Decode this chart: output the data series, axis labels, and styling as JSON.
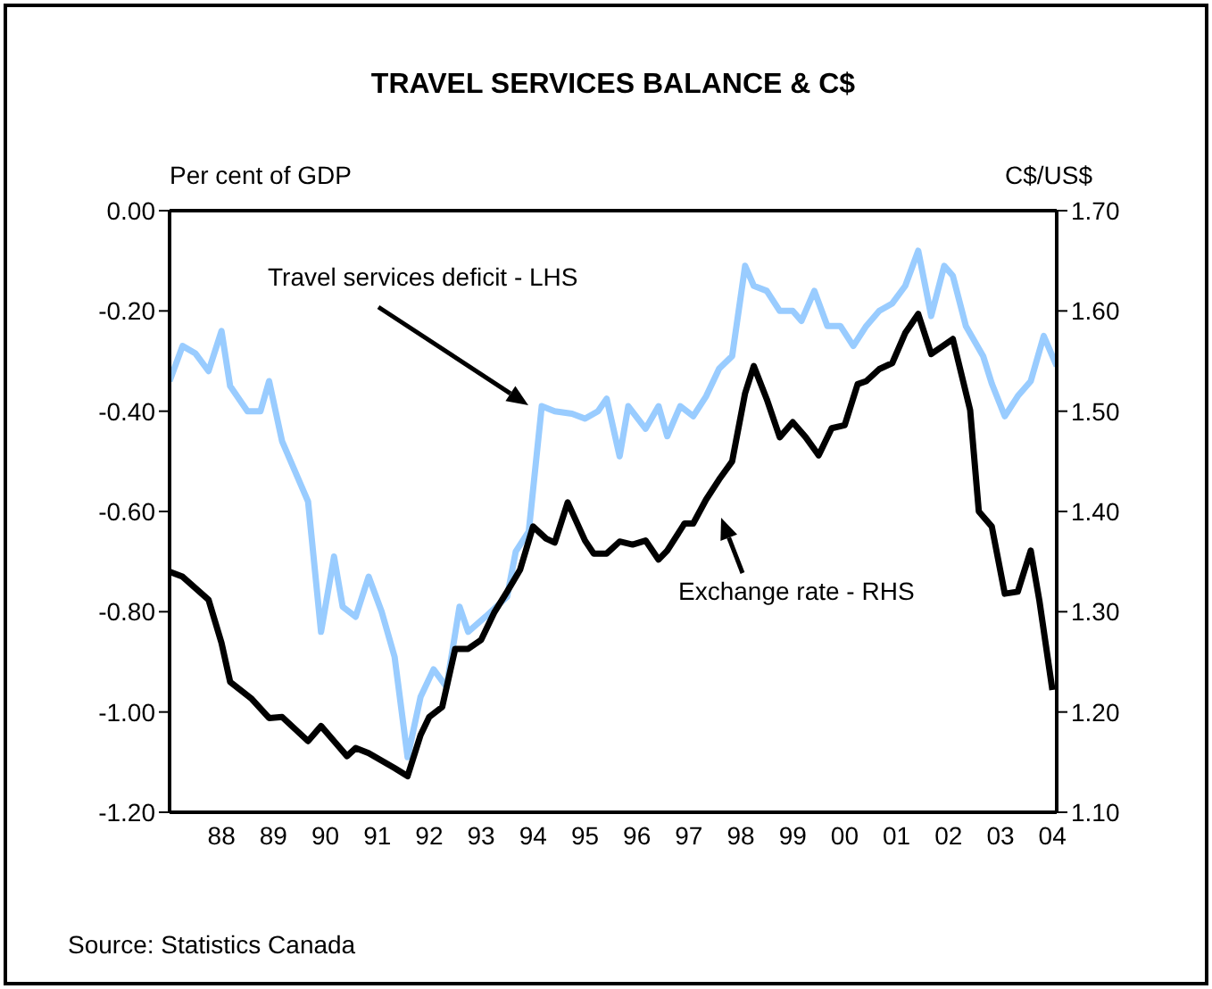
{
  "chart_data": {
    "type": "line",
    "title": "TRAVEL SERVICES BALANCE & C$",
    "ylabel": "Per cent of GDP",
    "y2label": "C$/US$",
    "annotations": [
      "Source: Statistics Canada"
    ],
    "xlim": [
      "1987-07",
      "2004-08"
    ],
    "xticks": [
      {
        "value": "1988-07",
        "label": "88"
      },
      {
        "value": "1989-07",
        "label": "89"
      },
      {
        "value": "1990-07",
        "label": "90"
      },
      {
        "value": "1991-07",
        "label": "91"
      },
      {
        "value": "1992-07",
        "label": "92"
      },
      {
        "value": "1993-07",
        "label": "93"
      },
      {
        "value": "1994-07",
        "label": "94"
      },
      {
        "value": "1995-07",
        "label": "95"
      },
      {
        "value": "1996-07",
        "label": "96"
      },
      {
        "value": "1997-07",
        "label": "97"
      },
      {
        "value": "1998-07",
        "label": "98"
      },
      {
        "value": "1999-07",
        "label": "99"
      },
      {
        "value": "2000-07",
        "label": "00"
      },
      {
        "value": "2001-07",
        "label": "01"
      },
      {
        "value": "2002-07",
        "label": "02"
      },
      {
        "value": "2003-07",
        "label": "03"
      },
      {
        "value": "2004-07",
        "label": "04"
      }
    ],
    "ylim": [
      -1.2,
      0
    ],
    "yticks": [
      {
        "value": 0,
        "label": "0.00"
      },
      {
        "value": -0.2,
        "label": "-0.20"
      },
      {
        "value": -0.4,
        "label": "-0.40"
      },
      {
        "value": -0.6,
        "label": "-0.60"
      },
      {
        "value": -0.8,
        "label": "-0.80"
      },
      {
        "value": -1.0,
        "label": "-1.00"
      },
      {
        "value": -1.2,
        "label": "-1.20"
      }
    ],
    "y2lim": [
      1.1,
      1.7
    ],
    "y2ticks": [
      {
        "value": 1.1,
        "label": "1.10"
      },
      {
        "value": 1.2,
        "label": "1.20"
      },
      {
        "value": 1.3,
        "label": "1.30"
      },
      {
        "value": 1.4,
        "label": "1.40"
      },
      {
        "value": 1.5,
        "label": "1.50"
      },
      {
        "value": 1.6,
        "label": "1.60"
      },
      {
        "value": 1.7,
        "label": "1.70"
      }
    ],
    "grid": false,
    "marker": "none",
    "line_style": "solid",
    "series": [
      {
        "name": "Travel services deficit - LHS",
        "color": "#99ccff",
        "x": [
          "1987-07",
          "1987-10",
          "1988-01",
          "1988-04",
          "1988-07",
          "1988-09",
          "1989-01",
          "1989-04",
          "1989-06",
          "1989-09",
          "1989-12",
          "1990-03",
          "1990-06",
          "1990-09",
          "1990-11",
          "1991-02",
          "1991-05",
          "1991-08",
          "1991-11",
          "1992-02",
          "1992-05",
          "1992-08",
          "1992-11",
          "1993-02",
          "1993-04",
          "1993-08",
          "1994-01",
          "1994-03",
          "1994-06",
          "1994-09",
          "1994-12",
          "1995-04",
          "1995-07",
          "1995-10",
          "1995-12",
          "1996-03",
          "1996-05",
          "1996-09",
          "1996-12",
          "1997-02",
          "1997-05",
          "1997-08",
          "1997-11",
          "1998-02",
          "1998-05",
          "1998-08",
          "1998-10",
          "1999-01",
          "1999-04",
          "1999-07",
          "1999-09",
          "1999-12",
          "2000-03",
          "2000-06",
          "2000-09",
          "2000-12",
          "2001-03",
          "2001-06",
          "2001-09",
          "2001-12",
          "2002-03",
          "2002-06",
          "2002-08",
          "2002-11",
          "2003-03",
          "2003-05",
          "2003-08",
          "2003-11",
          "2004-02",
          "2004-05",
          "2004-08"
        ],
        "values": [
          -0.34,
          -0.27,
          -0.285,
          -0.32,
          -0.24,
          -0.35,
          -0.4,
          -0.4,
          -0.34,
          -0.46,
          -0.52,
          -0.58,
          -0.84,
          -0.69,
          -0.79,
          -0.81,
          -0.73,
          -0.8,
          -0.89,
          -1.09,
          -0.97,
          -0.915,
          -0.95,
          -0.79,
          -0.84,
          -0.81,
          -0.77,
          -0.68,
          -0.64,
          -0.39,
          -0.4,
          -0.405,
          -0.415,
          -0.4,
          -0.375,
          -0.49,
          -0.39,
          -0.435,
          -0.39,
          -0.45,
          -0.39,
          -0.41,
          -0.37,
          -0.315,
          -0.29,
          -0.11,
          -0.15,
          -0.16,
          -0.2,
          -0.2,
          -0.22,
          -0.16,
          -0.23,
          -0.23,
          -0.27,
          -0.23,
          -0.2,
          -0.185,
          -0.15,
          -0.08,
          -0.21,
          -0.11,
          -0.13,
          -0.23,
          -0.29,
          -0.345,
          -0.41,
          -0.37,
          -0.34,
          -0.25,
          -0.31
        ]
      },
      {
        "name": "Exchange rate - RHS",
        "color": "#000000",
        "axis": "y2",
        "x": [
          "1987-07",
          "1987-10",
          "1988-04",
          "1988-07",
          "1988-09",
          "1989-02",
          "1989-06",
          "1989-09",
          "1990-03",
          "1990-06",
          "1990-09",
          "1990-12",
          "1991-02",
          "1991-05",
          "1991-11",
          "1992-02",
          "1992-05",
          "1992-07",
          "1992-10",
          "1993-01",
          "1993-04",
          "1993-07",
          "1993-10",
          "1994-01",
          "1994-04",
          "1994-07",
          "1994-10",
          "1994-12",
          "1995-03",
          "1995-07",
          "1995-09",
          "1995-12",
          "1996-03",
          "1996-06",
          "1996-09",
          "1996-12",
          "1997-02",
          "1997-06",
          "1997-08",
          "1997-11",
          "1998-02",
          "1998-05",
          "1998-08",
          "1998-10",
          "1999-01",
          "1999-04",
          "1999-07",
          "1999-10",
          "2000-01",
          "2000-04",
          "2000-07",
          "2000-10",
          "2000-12",
          "2001-03",
          "2001-06",
          "2001-09",
          "2001-12",
          "2002-03",
          "2002-08",
          "2002-12",
          "2003-02",
          "2003-05",
          "2003-08",
          "2003-11",
          "2004-02",
          "2004-04",
          "2004-07"
        ],
        "values": [
          1.34,
          1.335,
          1.312,
          1.269,
          1.23,
          1.213,
          1.194,
          1.195,
          1.171,
          1.186,
          1.171,
          1.156,
          1.164,
          1.159,
          1.144,
          1.136,
          1.177,
          1.195,
          1.205,
          1.263,
          1.263,
          1.272,
          1.299,
          1.32,
          1.342,
          1.385,
          1.373,
          1.369,
          1.409,
          1.371,
          1.358,
          1.358,
          1.37,
          1.367,
          1.371,
          1.352,
          1.361,
          1.388,
          1.388,
          1.412,
          1.432,
          1.45,
          1.518,
          1.545,
          1.512,
          1.474,
          1.489,
          1.474,
          1.456,
          1.483,
          1.486,
          1.527,
          1.53,
          1.542,
          1.548,
          1.578,
          1.597,
          1.557,
          1.572,
          1.501,
          1.4,
          1.385,
          1.318,
          1.32,
          1.361,
          1.311,
          1.222
        ]
      }
    ]
  }
}
